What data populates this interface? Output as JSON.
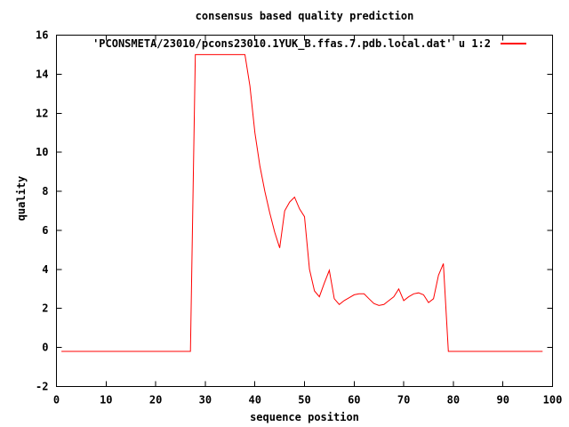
{
  "title": "consensus based quality prediction",
  "legend": {
    "label": "'PCONSMETA/23010/pcons23010.1YUK_B.ffas.7.pdb.local.dat' u 1:2",
    "line_color": "#ff0000"
  },
  "axes": {
    "xlabel": "sequence position",
    "ylabel": "quality"
  },
  "colors": {
    "background": "#ffffff",
    "frame": "#000000",
    "text": "#000000",
    "series": "#ff0000"
  },
  "chart_data": {
    "type": "line",
    "title": "consensus based quality prediction",
    "xlabel": "sequence position",
    "ylabel": "quality",
    "xlim": [
      0,
      100
    ],
    "ylim": [
      -2,
      16
    ],
    "x_ticks": [
      0,
      10,
      20,
      30,
      40,
      50,
      60,
      70,
      80,
      90,
      100
    ],
    "y_ticks": [
      -2,
      0,
      2,
      4,
      6,
      8,
      10,
      12,
      14,
      16
    ],
    "grid": false,
    "legend_position": "top-right-inside",
    "series": [
      {
        "name": "'PCONSMETA/23010/pcons23010.1YUK_B.ffas.7.pdb.local.dat' u 1:2",
        "color": "#ff0000",
        "x_start": 1,
        "x_step": 1,
        "values": [
          -0.2,
          -0.2,
          -0.2,
          -0.2,
          -0.2,
          -0.2,
          -0.2,
          -0.2,
          -0.2,
          -0.2,
          -0.2,
          -0.2,
          -0.2,
          -0.2,
          -0.2,
          -0.2,
          -0.2,
          -0.2,
          -0.2,
          -0.2,
          -0.2,
          -0.2,
          -0.2,
          -0.2,
          -0.2,
          -0.2,
          -0.2,
          15,
          15,
          15,
          15,
          15,
          15,
          15,
          15,
          15,
          15,
          15,
          13.4,
          11.0,
          9.3,
          8.0,
          6.9,
          5.9,
          5.1,
          7.0,
          7.45,
          7.7,
          7.1,
          6.7,
          4.0,
          2.9,
          2.6,
          3.3,
          3.95,
          2.5,
          2.2,
          2.4,
          2.55,
          2.7,
          2.75,
          2.75,
          2.5,
          2.25,
          2.15,
          2.2,
          2.4,
          2.6,
          3.0,
          2.4,
          2.6,
          2.75,
          2.8,
          2.7,
          2.3,
          2.5,
          3.7,
          4.3,
          -0.2,
          -0.2,
          -0.2,
          -0.2,
          -0.2,
          -0.2,
          -0.2,
          -0.2,
          -0.2,
          -0.2,
          -0.2,
          -0.2,
          -0.2,
          -0.2,
          -0.2,
          -0.2,
          -0.2,
          -0.2,
          -0.2,
          -0.2
        ]
      }
    ]
  }
}
